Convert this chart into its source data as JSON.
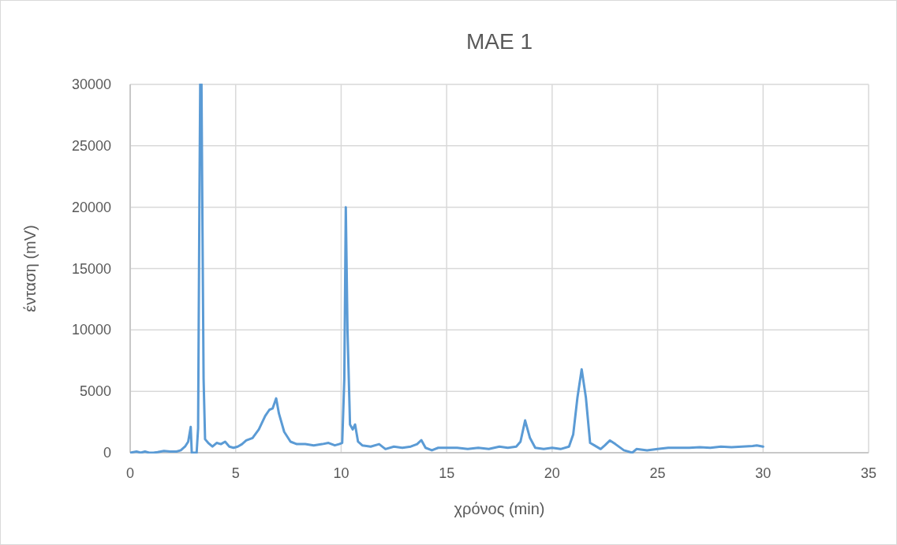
{
  "chart_data": {
    "type": "line",
    "title": "MAE 1",
    "xlabel": "χρόνος (min)",
    "ylabel": "ένταση (mV)",
    "xlim": [
      0,
      35
    ],
    "xticks": [
      0,
      5,
      10,
      15,
      20,
      25,
      30,
      35
    ],
    "ylim": [
      0,
      30000
    ],
    "yticks": [
      0,
      5000,
      10000,
      15000,
      20000,
      25000,
      30000
    ],
    "grid": true,
    "marker": "none",
    "line_style": "solid",
    "series": [
      {
        "color": "#5b9bd5",
        "x": [
          0,
          0.3,
          0.5,
          0.7,
          0.9,
          1.1,
          1.3,
          1.6,
          1.9,
          2.2,
          2.4,
          2.6,
          2.75,
          2.87,
          2.92,
          3.0,
          3.15,
          3.22,
          3.28,
          3.32,
          3.38,
          3.42,
          3.48,
          3.55,
          3.7,
          3.9,
          4.1,
          4.3,
          4.5,
          4.7,
          4.9,
          5.1,
          5.3,
          5.5,
          5.8,
          6.1,
          6.4,
          6.6,
          6.75,
          6.92,
          7.05,
          7.3,
          7.6,
          7.9,
          8.3,
          8.7,
          9.1,
          9.4,
          9.7,
          9.9,
          10.05,
          10.15,
          10.22,
          10.3,
          10.42,
          10.55,
          10.66,
          10.8,
          11.0,
          11.4,
          11.8,
          12.1,
          12.5,
          12.9,
          13.3,
          13.6,
          13.8,
          14.0,
          14.3,
          14.6,
          15.0,
          15.5,
          16.0,
          16.5,
          17.0,
          17.5,
          17.9,
          18.3,
          18.5,
          18.72,
          18.95,
          19.2,
          19.6,
          20.0,
          20.4,
          20.8,
          21.0,
          21.2,
          21.4,
          21.6,
          21.8,
          22.0,
          22.3,
          22.5,
          22.74,
          23.0,
          23.4,
          23.8,
          24.0,
          24.5,
          25.0,
          25.5,
          26.0,
          26.5,
          27.0,
          27.5,
          28.0,
          28.5,
          29.0,
          29.5,
          29.7,
          30.0
        ],
        "values": [
          0,
          100,
          0,
          100,
          0,
          0,
          50,
          150,
          100,
          100,
          200,
          500,
          900,
          2100,
          0,
          0,
          0,
          2000,
          20000,
          30000,
          30000,
          20000,
          6000,
          1100,
          800,
          500,
          800,
          700,
          900,
          500,
          400,
          500,
          700,
          1000,
          1200,
          1900,
          3000,
          3500,
          3600,
          4430,
          3200,
          1700,
          900,
          700,
          700,
          600,
          700,
          800,
          600,
          700,
          800,
          6000,
          20000,
          10000,
          2300,
          1900,
          2300,
          900,
          600,
          500,
          700,
          300,
          500,
          400,
          500,
          700,
          1030,
          400,
          200,
          400,
          400,
          400,
          300,
          400,
          300,
          500,
          400,
          500,
          900,
          2630,
          1200,
          400,
          300,
          400,
          300,
          500,
          1500,
          4500,
          6800,
          4500,
          800,
          600,
          300,
          600,
          1000,
          700,
          200,
          0,
          300,
          200,
          300,
          400,
          400,
          400,
          450,
          400,
          500,
          450,
          500,
          550,
          600,
          500
        ]
      }
    ]
  }
}
